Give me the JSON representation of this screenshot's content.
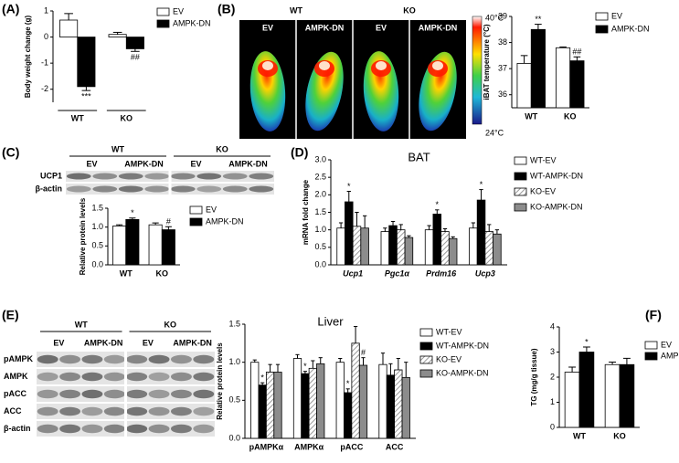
{
  "panel_labels": [
    "(A)",
    "(B)",
    "(C)",
    "(D)",
    "(E)",
    "(F)"
  ],
  "thermal": {
    "groups": [
      "WT",
      "KO"
    ],
    "lanes": [
      "EV",
      "AMPK-DN",
      "EV",
      "AMPK-DN"
    ],
    "scale_max": "40°C",
    "scale_min": "24°C"
  },
  "blot_c": {
    "groups": [
      "WT",
      "KO"
    ],
    "lanes": [
      "EV",
      "AMPK-DN",
      "EV",
      "AMPK-DN"
    ],
    "rows": [
      "UCP1",
      "β-actin"
    ]
  },
  "blot_e": {
    "groups": [
      "WT",
      "KO"
    ],
    "lanes": [
      "EV",
      "AMPK-DN",
      "EV",
      "AMPK-DN"
    ],
    "rows": [
      "pAMPK",
      "AMPK",
      "pACC",
      "ACC",
      "β-actin"
    ]
  },
  "chart_data": [
    {
      "type": "bar",
      "y_label": "Body weight change (g)",
      "categories": [
        "WT",
        "KO"
      ],
      "series": [
        {
          "name": "EV",
          "color": "#ffffff",
          "values": [
            0.65,
            0.1
          ],
          "errors": [
            0.25,
            0.08
          ],
          "annotations": [
            null,
            null
          ]
        },
        {
          "name": "AMPK-DN",
          "color": "#000000",
          "values": [
            -1.9,
            -0.45
          ],
          "errors": [
            0.15,
            0.1
          ],
          "annotations": [
            "***",
            "##"
          ]
        }
      ],
      "ylim": [
        -2.5,
        1.0
      ],
      "yticks": [
        -2,
        -1,
        0,
        1
      ]
    },
    {
      "type": "bar",
      "y_label": "iBAT temperature (°C)",
      "categories": [
        "WT",
        "KO"
      ],
      "series": [
        {
          "name": "EV",
          "color": "#ffffff",
          "values": [
            37.2,
            37.8
          ],
          "errors": [
            0.3,
            0.03
          ],
          "annotations": [
            null,
            null
          ]
        },
        {
          "name": "AMPK-DN",
          "color": "#000000",
          "values": [
            38.5,
            37.3
          ],
          "errors": [
            0.2,
            0.15
          ],
          "annotations": [
            "**",
            "##"
          ]
        }
      ],
      "ylim": [
        35.5,
        39
      ],
      "yticks": [
        36,
        37,
        38,
        39
      ]
    },
    {
      "type": "bar",
      "y_label": "Relative protein levels",
      "categories": [
        "WT",
        "KO"
      ],
      "series": [
        {
          "name": "EV",
          "color": "#ffffff",
          "values": [
            1.03,
            1.06
          ],
          "errors": [
            0.03,
            0.05
          ],
          "annotations": [
            null,
            null
          ]
        },
        {
          "name": "AMPK-DN",
          "color": "#000000",
          "values": [
            1.2,
            0.93
          ],
          "errors": [
            0.04,
            0.08
          ],
          "annotations": [
            "*",
            "#"
          ]
        }
      ],
      "ylim": [
        0,
        1.5
      ],
      "yticks": [
        {
          "value": 0,
          "label": "0.0"
        },
        {
          "value": 0.5,
          "label": "0.5"
        },
        {
          "value": 1,
          "label": "1.0"
        },
        {
          "value": 1.5,
          "label": "1.5"
        }
      ]
    },
    {
      "type": "bar",
      "title": "BAT",
      "y_label": "mRNA fold change",
      "categories": [
        "Ucp1",
        "Pgc1α",
        "Prdm16",
        "Ucp3"
      ],
      "series": [
        {
          "name": "WT-EV",
          "color": "#ffffff",
          "values": [
            1.05,
            0.95,
            1.0,
            1.05
          ],
          "errors": [
            0.15,
            0.1,
            0.12,
            0.15
          ],
          "annotations": [
            null,
            null,
            null,
            null
          ]
        },
        {
          "name": "WT-AMPK-DN",
          "color": "#000000",
          "values": [
            1.8,
            1.12,
            1.45,
            1.85
          ],
          "errors": [
            0.3,
            0.12,
            0.12,
            0.3
          ],
          "annotations": [
            "*",
            null,
            "*",
            "*"
          ]
        },
        {
          "name": "KO-EV",
          "color": "#ffffff",
          "hatch": true,
          "values": [
            1.1,
            1.0,
            0.95,
            0.95
          ],
          "errors": [
            0.4,
            0.15,
            0.08,
            0.2
          ],
          "annotations": [
            null,
            null,
            null,
            null
          ]
        },
        {
          "name": "KO-AMPK-DN",
          "color": "#8c8c8c",
          "values": [
            1.05,
            0.78,
            0.75,
            0.88
          ],
          "errors": [
            0.35,
            0.05,
            0.05,
            0.12
          ],
          "annotations": [
            null,
            null,
            null,
            null
          ]
        }
      ],
      "ylim": [
        0,
        3
      ],
      "yticks": [
        {
          "value": 0,
          "label": "0.0"
        },
        {
          "value": 0.5,
          "label": "0.5"
        },
        {
          "value": 1,
          "label": "1.0"
        },
        {
          "value": 1.5,
          "label": "1.5"
        },
        {
          "value": 2,
          "label": "2.0"
        },
        {
          "value": 2.5,
          "label": "2.5"
        },
        {
          "value": 3,
          "label": "3.0"
        }
      ]
    },
    {
      "type": "bar",
      "title": "Liver",
      "y_label": "Relative protein levels",
      "categories": [
        "pAMPKα",
        "AMPKα",
        "pACC",
        "ACC"
      ],
      "series": [
        {
          "name": "WT-EV",
          "color": "#ffffff",
          "values": [
            1.0,
            1.05,
            1.0,
            0.97
          ],
          "errors": [
            0.03,
            0.05,
            0.05,
            0.15
          ],
          "annotations": [
            null,
            null,
            null,
            null
          ]
        },
        {
          "name": "WT-AMPK-DN",
          "color": "#000000",
          "values": [
            0.7,
            0.85,
            0.6,
            0.83
          ],
          "errors": [
            0.03,
            0.03,
            0.05,
            0.15
          ],
          "annotations": [
            "*",
            "*",
            "*",
            null
          ]
        },
        {
          "name": "KO-EV",
          "color": "#ffffff",
          "hatch": true,
          "values": [
            0.87,
            0.92,
            1.25,
            0.9
          ],
          "errors": [
            0.1,
            0.1,
            0.22,
            0.15
          ],
          "annotations": [
            null,
            null,
            null,
            null
          ]
        },
        {
          "name": "KO-AMPK-DN",
          "color": "#8c8c8c",
          "values": [
            0.87,
            0.98,
            0.96,
            0.8
          ],
          "errors": [
            0.1,
            0.08,
            0.1,
            0.2
          ],
          "annotations": [
            null,
            null,
            "#",
            null
          ]
        }
      ],
      "ylim": [
        0,
        1.5
      ],
      "yticks": [
        {
          "value": 0,
          "label": "0.0"
        },
        {
          "value": 0.5,
          "label": "0.5"
        },
        {
          "value": 1,
          "label": "1.0"
        },
        {
          "value": 1.5,
          "label": "1.5"
        }
      ]
    },
    {
      "type": "bar",
      "y_label": "TG (mg/g tissue)",
      "categories": [
        "WT",
        "KO"
      ],
      "series": [
        {
          "name": "EV",
          "color": "#ffffff",
          "values": [
            2.2,
            2.5
          ],
          "errors": [
            0.2,
            0.1
          ],
          "annotations": [
            null,
            null
          ]
        },
        {
          "name": "AMPK-DN",
          "color": "#000000",
          "values": [
            3.0,
            2.5
          ],
          "errors": [
            0.2,
            0.25
          ],
          "annotations": [
            "*",
            null
          ]
        }
      ],
      "ylim": [
        0,
        4
      ],
      "yticks": [
        0,
        1,
        2,
        3,
        4
      ]
    }
  ]
}
